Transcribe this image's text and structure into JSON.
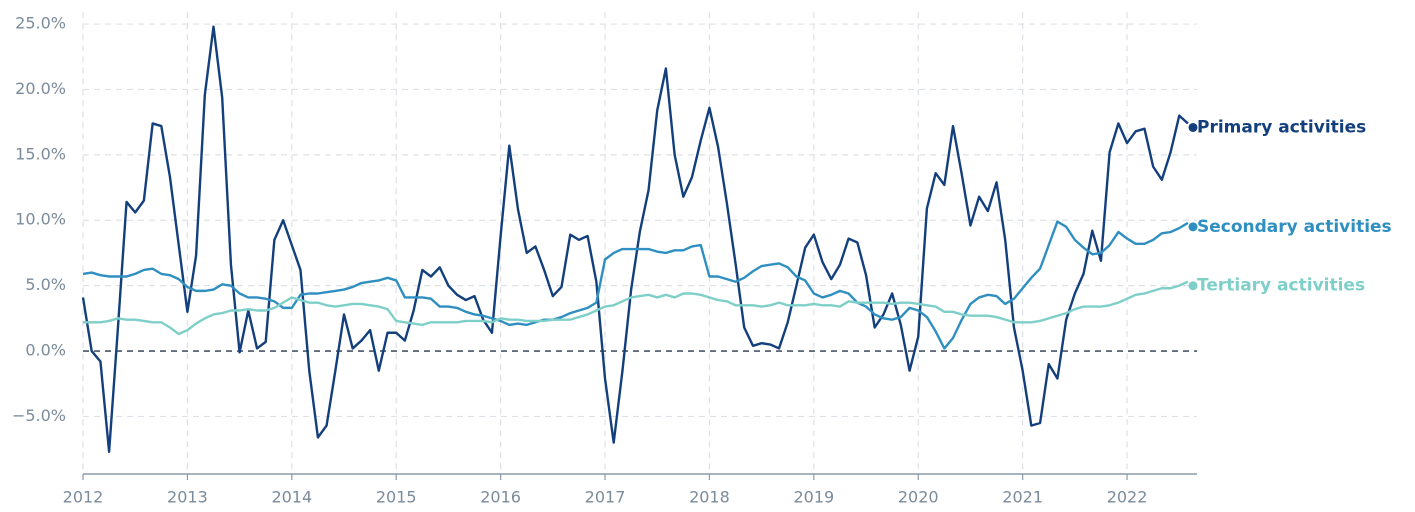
{
  "chart_data": {
    "type": "line",
    "x": [
      2012,
      2012.083,
      2012.167,
      2012.25,
      2012.333,
      2012.417,
      2012.5,
      2012.583,
      2012.667,
      2012.75,
      2012.833,
      2012.917,
      2013,
      2013.083,
      2013.167,
      2013.25,
      2013.333,
      2013.417,
      2013.5,
      2013.583,
      2013.667,
      2013.75,
      2013.833,
      2013.917,
      2014,
      2014.083,
      2014.167,
      2014.25,
      2014.333,
      2014.417,
      2014.5,
      2014.583,
      2014.667,
      2014.75,
      2014.833,
      2014.917,
      2015,
      2015.083,
      2015.167,
      2015.25,
      2015.333,
      2015.417,
      2015.5,
      2015.583,
      2015.667,
      2015.75,
      2015.833,
      2015.917,
      2016,
      2016.083,
      2016.167,
      2016.25,
      2016.333,
      2016.417,
      2016.5,
      2016.583,
      2016.667,
      2016.75,
      2016.833,
      2016.917,
      2017,
      2017.083,
      2017.167,
      2017.25,
      2017.333,
      2017.417,
      2017.5,
      2017.583,
      2017.667,
      2017.75,
      2017.833,
      2017.917,
      2018,
      2018.083,
      2018.167,
      2018.25,
      2018.333,
      2018.417,
      2018.5,
      2018.583,
      2018.667,
      2018.75,
      2018.833,
      2018.917,
      2019,
      2019.083,
      2019.167,
      2019.25,
      2019.333,
      2019.417,
      2019.5,
      2019.583,
      2019.667,
      2019.75,
      2019.833,
      2019.917,
      2020,
      2020.083,
      2020.167,
      2020.25,
      2020.333,
      2020.417,
      2020.5,
      2020.583,
      2020.667,
      2020.75,
      2020.833,
      2020.917,
      2021,
      2021.083,
      2021.167,
      2021.25,
      2021.333,
      2021.417,
      2021.5,
      2021.583,
      2021.667,
      2021.75,
      2021.833,
      2021.917,
      2022,
      2022.083,
      2022.167,
      2022.25,
      2022.333,
      2022.417,
      2022.5,
      2022.583
    ],
    "series": [
      {
        "name": "Primary activities",
        "color": "#143f7d",
        "values": [
          4.1,
          0,
          -0.8,
          -7.7,
          1.6,
          11.4,
          10.6,
          11.5,
          17.4,
          17.2,
          13.3,
          8.1,
          3.0,
          7.3,
          19.6,
          24.8,
          19.4,
          6.6,
          -0.1,
          3.1,
          0.2,
          0.7,
          8.5,
          10.0,
          8.1,
          6.2,
          -1.5,
          -6.6,
          -5.7,
          -1.5,
          2.8,
          0.2,
          0.8,
          1.6,
          -1.5,
          1.4,
          1.4,
          0.8,
          3.1,
          6.2,
          5.7,
          6.4,
          5.0,
          4.3,
          3.9,
          4.2,
          2.4,
          1.4,
          8.8,
          15.7,
          10.8,
          7.5,
          8.0,
          6.2,
          4.2,
          4.9,
          8.9,
          8.5,
          8.8,
          5.3,
          -2.1,
          -7.0,
          -1.5,
          4.7,
          9.1,
          12.3,
          18.4,
          21.6,
          15.0,
          11.8,
          13.3,
          16.1,
          18.6,
          15.6,
          11.3,
          6.7,
          1.8,
          0.4,
          0.6,
          0.5,
          0.2,
          2.2,
          5.0,
          7.9,
          8.9,
          6.8,
          5.5,
          6.6,
          8.6,
          8.3,
          5.8,
          1.8,
          2.8,
          4.4,
          2.0,
          -1.5,
          1.1,
          10.9,
          13.6,
          12.7,
          17.2,
          13.5,
          9.6,
          11.8,
          10.7,
          12.9,
          8.5,
          1.8,
          -1.5,
          -5.7,
          -5.5,
          -1.0,
          -2.1,
          2.4,
          4.4,
          5.9,
          9.2,
          6.9,
          15.2,
          17.4,
          15.9,
          16.8,
          17.0,
          14.1,
          13.1,
          15.2,
          18.0,
          17.4
        ]
      },
      {
        "name": "Secondary activities",
        "color": "#2f8fc1",
        "values": [
          5.9,
          6.0,
          5.8,
          5.7,
          5.7,
          5.7,
          5.9,
          6.2,
          6.3,
          5.9,
          5.8,
          5.5,
          4.9,
          4.6,
          4.6,
          4.7,
          5.1,
          5.0,
          4.4,
          4.1,
          4.1,
          4.0,
          3.8,
          3.3,
          3.3,
          4.3,
          4.4,
          4.4,
          4.5,
          4.6,
          4.7,
          4.9,
          5.2,
          5.3,
          5.4,
          5.6,
          5.4,
          4.1,
          4.1,
          4.1,
          4.0,
          3.4,
          3.4,
          3.3,
          3.0,
          2.8,
          2.7,
          2.5,
          2.3,
          2.0,
          2.1,
          2.0,
          2.2,
          2.4,
          2.4,
          2.6,
          2.9,
          3.1,
          3.3,
          3.7,
          7.0,
          7.5,
          7.8,
          7.8,
          7.8,
          7.8,
          7.6,
          7.5,
          7.7,
          7.7,
          8.0,
          8.1,
          5.7,
          5.7,
          5.5,
          5.3,
          5.6,
          6.1,
          6.5,
          6.6,
          6.7,
          6.4,
          5.7,
          5.4,
          4.4,
          4.1,
          4.3,
          4.6,
          4.4,
          3.7,
          3.4,
          2.8,
          2.5,
          2.4,
          2.6,
          3.3,
          3.1,
          2.6,
          1.5,
          0.2,
          1.0,
          2.4,
          3.6,
          4.1,
          4.3,
          4.2,
          3.6,
          4.0,
          4.8,
          5.6,
          6.3,
          8.1,
          9.9,
          9.5,
          8.5,
          7.9,
          7.4,
          7.5,
          8.1,
          9.1,
          8.6,
          8.2,
          8.2,
          8.5,
          9.0,
          9.1,
          9.4,
          9.8
        ]
      },
      {
        "name": "Tertiary activities",
        "color": "#7fcfc9",
        "values": [
          2.2,
          2.2,
          2.2,
          2.3,
          2.5,
          2.4,
          2.4,
          2.3,
          2.2,
          2.2,
          1.8,
          1.3,
          1.6,
          2.1,
          2.5,
          2.8,
          2.9,
          3.1,
          3.1,
          3.2,
          3.1,
          3.1,
          3.3,
          3.7,
          4.1,
          3.9,
          3.7,
          3.7,
          3.5,
          3.4,
          3.5,
          3.6,
          3.6,
          3.5,
          3.4,
          3.2,
          2.3,
          2.2,
          2.1,
          2.0,
          2.2,
          2.2,
          2.2,
          2.2,
          2.3,
          2.3,
          2.3,
          2.2,
          2.5,
          2.4,
          2.4,
          2.3,
          2.3,
          2.3,
          2.4,
          2.4,
          2.4,
          2.6,
          2.8,
          3.1,
          3.4,
          3.5,
          3.8,
          4.1,
          4.2,
          4.3,
          4.1,
          4.3,
          4.1,
          4.4,
          4.4,
          4.3,
          4.1,
          3.9,
          3.8,
          3.5,
          3.5,
          3.5,
          3.4,
          3.5,
          3.7,
          3.5,
          3.5,
          3.5,
          3.6,
          3.5,
          3.5,
          3.4,
          3.8,
          3.7,
          3.7,
          3.7,
          3.7,
          3.6,
          3.7,
          3.7,
          3.6,
          3.5,
          3.4,
          3.0,
          3.0,
          2.8,
          2.7,
          2.7,
          2.7,
          2.6,
          2.4,
          2.2,
          2.2,
          2.2,
          2.3,
          2.5,
          2.7,
          2.9,
          3.2,
          3.4,
          3.4,
          3.4,
          3.5,
          3.7,
          4.0,
          4.3,
          4.4,
          4.6,
          4.8,
          4.8,
          5.0,
          5.3
        ]
      }
    ],
    "xlim": [
      2012,
      2022.67
    ],
    "xticks": [
      2012,
      2013,
      2014,
      2015,
      2016,
      2017,
      2018,
      2019,
      2020,
      2021,
      2022
    ],
    "ylim": [
      -9.4,
      25.9
    ],
    "yticks": [
      {
        "value": -5,
        "label": "−5.0%"
      },
      {
        "value": 0,
        "label": "0.0%"
      },
      {
        "value": 5,
        "label": "5.0%"
      },
      {
        "value": 10,
        "label": "10.0%"
      },
      {
        "value": 15,
        "label": "15.0%"
      },
      {
        "value": 20,
        "label": "20.0%"
      },
      {
        "value": 25,
        "label": "25.0%"
      }
    ],
    "grid": true
  }
}
